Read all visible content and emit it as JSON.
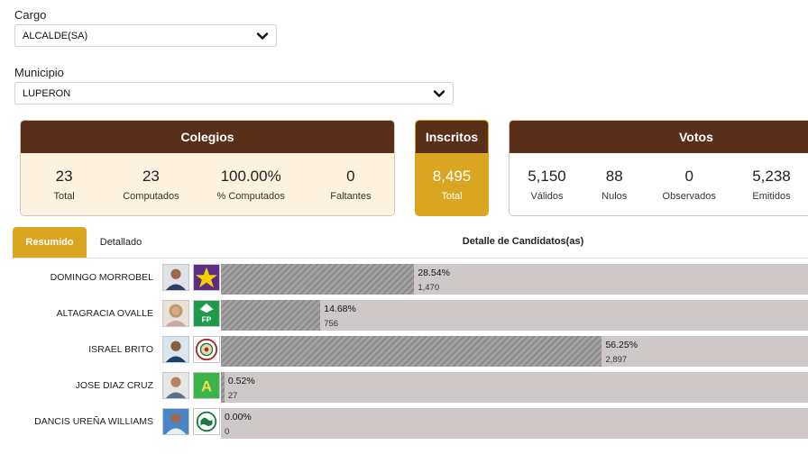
{
  "filters": {
    "cargo_label": "Cargo",
    "cargo_value": "ALCALDE(SA)",
    "municipio_label": "Municipio",
    "municipio_value": "LUPERON"
  },
  "colegios": {
    "title": "Colegios",
    "stats": [
      {
        "value": "23",
        "label": "Total"
      },
      {
        "value": "23",
        "label": "Computados"
      },
      {
        "value": "100.00%",
        "label": "% Computados"
      },
      {
        "value": "0",
        "label": "Faltantes"
      }
    ]
  },
  "inscritos": {
    "title": "Inscritos",
    "value": "8,495",
    "label": "Total"
  },
  "votos": {
    "title": "Votos",
    "stats": [
      {
        "value": "5,150",
        "label": "Válidos"
      },
      {
        "value": "88",
        "label": "Nulos"
      },
      {
        "value": "0",
        "label": "Observados"
      },
      {
        "value": "5,238",
        "label": "Emitidos"
      }
    ]
  },
  "tabs": {
    "resumen": "Resumido",
    "detallado": "Detallado"
  },
  "detail_title": "Detalle de Candidatos(as)",
  "colors": {
    "header_brown": "#5a2f1a",
    "accent_gold": "#daa520",
    "beige": "#fdf1df"
  },
  "candidates": [
    {
      "name": "DOMINGO MORROBEL",
      "pct_label": "28.54%",
      "votes": "1,470",
      "share": 28.54,
      "logo_icon": "star-party-logo-icon"
    },
    {
      "name": "ALTAGRACIA OVALLE",
      "pct_label": "14.68%",
      "votes": "756",
      "share": 14.68,
      "logo_icon": "fp-party-logo-icon",
      "logo_text": "FP"
    },
    {
      "name": "ISRAEL BRITO",
      "pct_label": "56.25%",
      "votes": "2,897",
      "share": 56.25,
      "logo_icon": "seal-party-logo-icon"
    },
    {
      "name": "JOSE DIAZ CRUZ",
      "pct_label": "0.52%",
      "votes": "27",
      "share": 0.52,
      "logo_icon": "a-party-logo-icon",
      "logo_text": "A"
    },
    {
      "name": "DANCIS UREÑA WILLIAMS",
      "pct_label": "0.00%",
      "votes": "0",
      "share": 0.0,
      "logo_icon": "globe-party-logo-icon"
    }
  ]
}
